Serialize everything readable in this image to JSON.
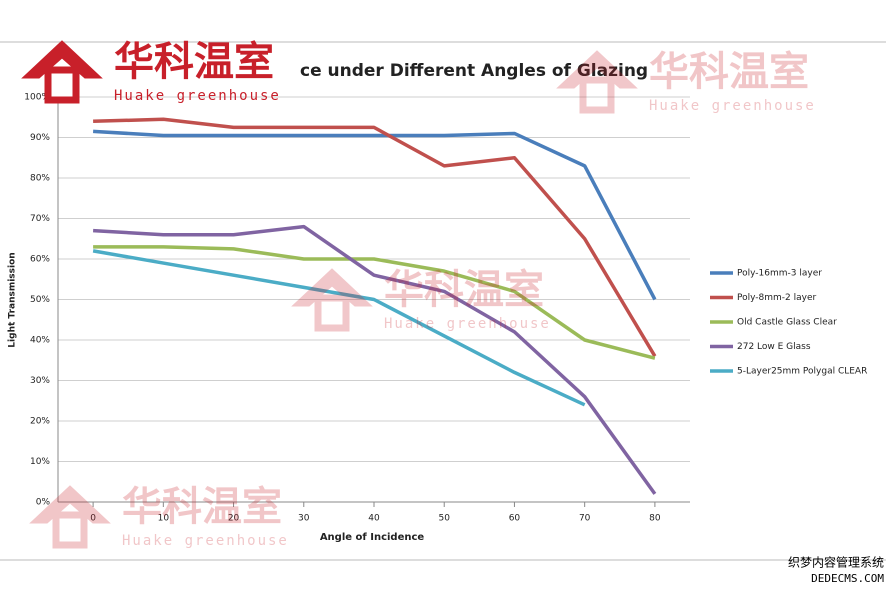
{
  "chart_data": {
    "type": "line",
    "title": "ce under Different Angles of Glazing",
    "x_label": "Angle of Incidence",
    "y_label": "Light Transmission",
    "x": [
      0,
      10,
      20,
      30,
      40,
      50,
      60,
      70,
      80
    ],
    "xlim": [
      -5,
      85
    ],
    "xticks": [
      0,
      10,
      20,
      30,
      40,
      50,
      60,
      70,
      80
    ],
    "ylim": [
      0,
      100
    ],
    "yticks": [
      {
        "value": 0,
        "label": "0%"
      },
      {
        "value": 10,
        "label": "10%"
      },
      {
        "value": 20,
        "label": "20%"
      },
      {
        "value": 30,
        "label": "30%"
      },
      {
        "value": 40,
        "label": "40%"
      },
      {
        "value": 50,
        "label": "50%"
      },
      {
        "value": 60,
        "label": "60%"
      },
      {
        "value": 70,
        "label": "70%"
      },
      {
        "value": 80,
        "label": "80%"
      },
      {
        "value": 90,
        "label": "90%"
      },
      {
        "value": 100,
        "label": "100%"
      }
    ],
    "grid": true,
    "legend": "right",
    "series": [
      {
        "name": "Poly-16mm-3 layer",
        "color": "#4a7ebb",
        "values": [
          91.5,
          90.5,
          90.5,
          90.5,
          90.5,
          90.5,
          91,
          83,
          50
        ]
      },
      {
        "name": "Poly-8mm-2 layer",
        "color": "#c0504d",
        "values": [
          94,
          94.5,
          92.5,
          92.5,
          92.5,
          83,
          85,
          65,
          36
        ]
      },
      {
        "name": "Old Castle Glass Clear",
        "color": "#9bbb59",
        "values": [
          63,
          63,
          62.5,
          60,
          60,
          57,
          52,
          40,
          35.5
        ]
      },
      {
        "name": "272 Low E Glass",
        "color": "#8064a2",
        "values": [
          67,
          66,
          66,
          68,
          56,
          52,
          42,
          26,
          2
        ]
      },
      {
        "name": "5-Layer25mm  Polygal CLEAR",
        "color": "#4bacc6",
        "values": [
          62,
          59,
          56,
          53,
          50,
          41,
          32,
          24,
          null
        ]
      }
    ]
  },
  "watermark": {
    "name": "华科温室",
    "subtitle": "Huake greenhouse"
  },
  "footer": {
    "name": "织梦内容管理系统",
    "site": "DEDECMS.COM"
  }
}
